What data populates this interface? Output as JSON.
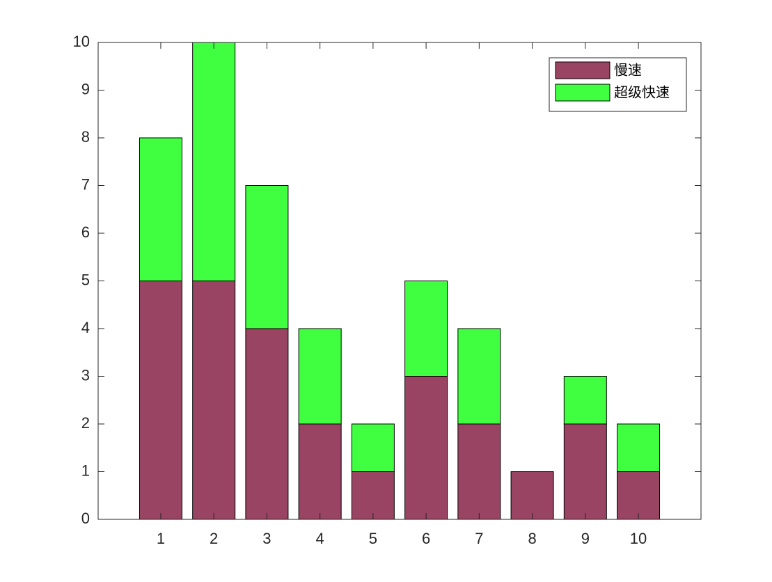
{
  "chart_data": {
    "type": "stacked-bar",
    "x": [
      1,
      2,
      3,
      4,
      5,
      6,
      7,
      8,
      9,
      10
    ],
    "series": [
      {
        "name": "慢速",
        "color": "#984462",
        "values": [
          5,
          5,
          4,
          2,
          1,
          3,
          2,
          1,
          2,
          1
        ]
      },
      {
        "name": "超级快速",
        "color": "#40ff40",
        "values": [
          3,
          5,
          3,
          2,
          1,
          2,
          2,
          0,
          1,
          1
        ]
      }
    ],
    "xlim": [
      -0.18,
      11.18
    ],
    "xticks": [
      1,
      2,
      3,
      4,
      5,
      6,
      7,
      8,
      9,
      10
    ],
    "ylim": [
      0,
      10
    ],
    "yticks": [
      0,
      1,
      2,
      3,
      4,
      5,
      6,
      7,
      8,
      9,
      10
    ],
    "grid": false,
    "legend": "northeast"
  }
}
